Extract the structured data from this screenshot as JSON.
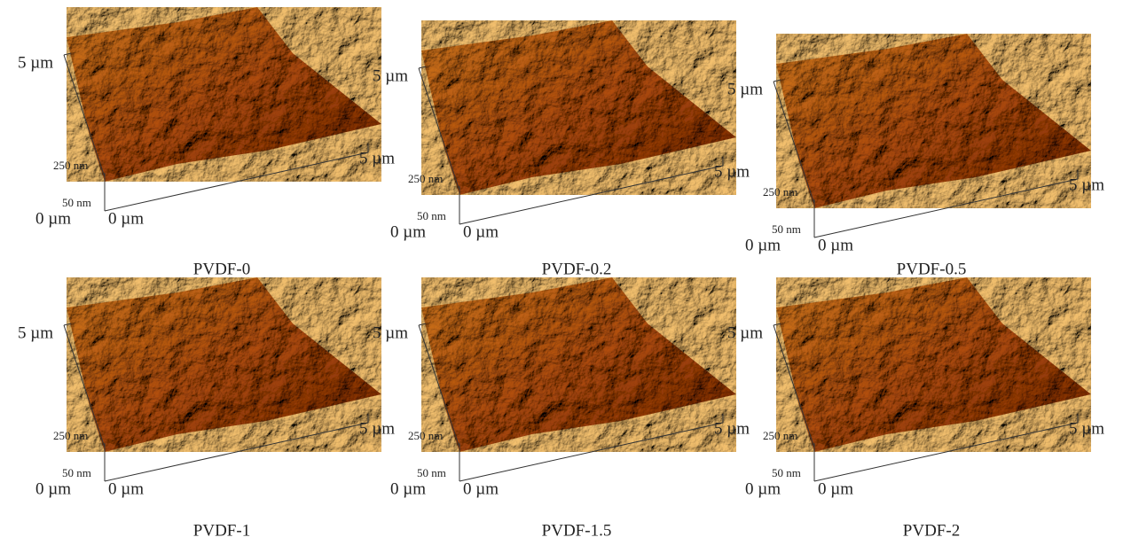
{
  "panels": [
    {
      "caption": "PVDF-0",
      "y_end": "5 µm",
      "x_end": "5 µm",
      "z_top": "250 nm",
      "z_bottom": "50 nm",
      "y_origin": "0 µm",
      "x_origin": "0 µm"
    },
    {
      "caption": "PVDF-0.2",
      "y_end": "5 µm",
      "x_end": "5 µm",
      "z_top": "250 nm",
      "z_bottom": "50 nm",
      "y_origin": "0 µm",
      "x_origin": "0 µm"
    },
    {
      "caption": "PVDF-0.5",
      "y_end": "5 µm",
      "x_end": "5 µm",
      "z_top": "250 nm",
      "z_bottom": "50 nm",
      "y_origin": "0 µm",
      "x_origin": "0 µm"
    },
    {
      "caption": "PVDF-1",
      "y_end": "5 µm",
      "x_end": "5 µm",
      "z_top": "250 nm",
      "z_bottom": "50 nm",
      "y_origin": "0 µm",
      "x_origin": "0 µm"
    },
    {
      "caption": "PVDF-1.5",
      "y_end": "5 µm",
      "x_end": "5 µm",
      "z_top": "250 nm",
      "z_bottom": "50 nm",
      "y_origin": "0 µm",
      "x_origin": "0 µm"
    },
    {
      "caption": "PVDF-2",
      "y_end": "5 µm",
      "x_end": "5 µm",
      "z_top": "250 nm",
      "z_bottom": "50 nm",
      "y_origin": "0 µm",
      "x_origin": "0 µm"
    }
  ]
}
